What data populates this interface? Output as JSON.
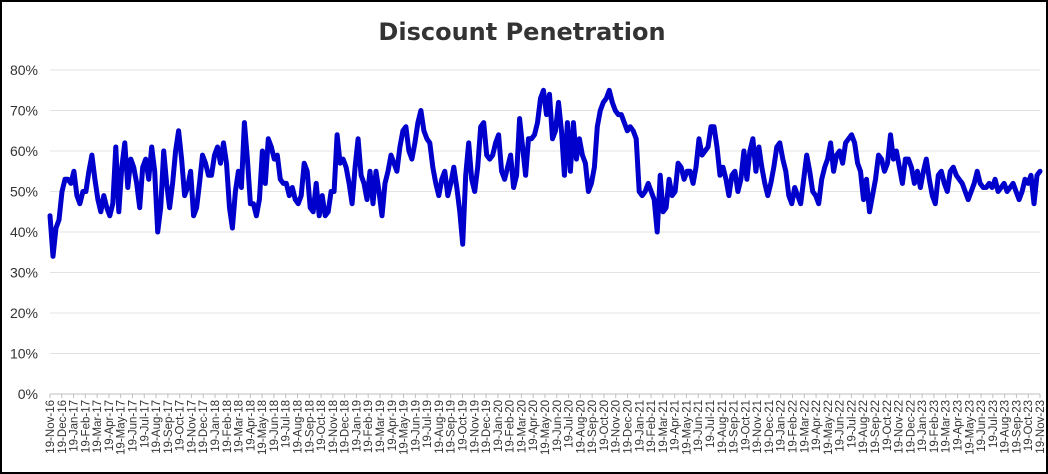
{
  "chart_data": {
    "type": "line",
    "title": "Discount Penetration",
    "xlabel": "",
    "ylabel": "",
    "ylim": [
      0,
      0.8
    ],
    "yticks": [
      "0%",
      "10%",
      "20%",
      "30%",
      "40%",
      "50%",
      "60%",
      "70%",
      "80%"
    ],
    "grid": true,
    "legend": "none",
    "line_color": "#0000CC",
    "categories": [
      "19-Nov-16",
      "19-Dec-16",
      "19-Jan-17",
      "19-Feb-17",
      "19-Mar-17",
      "19-Apr-17",
      "19-May-17",
      "19-Jun-17",
      "19-Jul-17",
      "19-Aug-17",
      "19-Sep-17",
      "19-Oct-17",
      "19-Nov-17",
      "19-Dec-17",
      "19-Jan-18",
      "19-Feb-18",
      "19-Mar-18",
      "19-Apr-18",
      "19-May-18",
      "19-Jun-18",
      "19-Jul-18",
      "19-Aug-18",
      "19-Sep-18",
      "19-Oct-18",
      "19-Nov-18",
      "19-Dec-18",
      "19-Jan-19",
      "19-Feb-19",
      "19-Mar-19",
      "19-Apr-19",
      "19-May-19",
      "19-Jun-19",
      "19-Jul-19",
      "19-Aug-19",
      "19-Sep-19",
      "19-Oct-19",
      "19-Nov-19",
      "19-Dec-19",
      "19-Jan-20",
      "19-Feb-20",
      "19-Mar-20",
      "19-Apr-20",
      "19-May-20",
      "19-Jun-20",
      "19-Jul-20",
      "19-Aug-20",
      "19-Sep-20",
      "19-Oct-20",
      "19-Nov-20",
      "19-Dec-20",
      "19-Jan-21",
      "19-Feb-21",
      "19-Mar-21",
      "19-Apr-21",
      "19-May-21",
      "19-Jun-21",
      "19-Jul-21",
      "19-Aug-21",
      "19-Sep-21",
      "19-Oct-21",
      "19-Nov-21",
      "19-Dec-21",
      "19-Jan-22",
      "19-Feb-22",
      "19-Mar-22",
      "19-Apr-22",
      "19-May-22",
      "19-Jun-22",
      "19-Jul-22",
      "19-Aug-22",
      "19-Sep-22",
      "19-Oct-22",
      "19-Nov-22",
      "19-Dec-22",
      "19-Jan-23",
      "19-Feb-23",
      "19-Mar-23",
      "19-Apr-23",
      "19-May-23",
      "19-Jun-23",
      "19-Jul-23",
      "19-Aug-23",
      "19-Sep-23",
      "19-Oct-23",
      "19-Nov-23"
    ],
    "series": [
      {
        "name": "Discount Penetration",
        "values": [
          0.44,
          0.34,
          0.41,
          0.43,
          0.5,
          0.53,
          0.53,
          0.52,
          0.55,
          0.49,
          0.47,
          0.5,
          0.5,
          0.55,
          0.59,
          0.53,
          0.48,
          0.45,
          0.49,
          0.46,
          0.44,
          0.47,
          0.61,
          0.45,
          0.56,
          0.62,
          0.51,
          0.58,
          0.56,
          0.52,
          0.46,
          0.56,
          0.58,
          0.53,
          0.61,
          0.55,
          0.4,
          0.46,
          0.6,
          0.52,
          0.46,
          0.52,
          0.6,
          0.65,
          0.58,
          0.49,
          0.51,
          0.55,
          0.44,
          0.46,
          0.52,
          0.59,
          0.57,
          0.54,
          0.54,
          0.59,
          0.61,
          0.57,
          0.62,
          0.57,
          0.46,
          0.41,
          0.5,
          0.55,
          0.51,
          0.67,
          0.58,
          0.47,
          0.47,
          0.44,
          0.48,
          0.6,
          0.52,
          0.63,
          0.61,
          0.58,
          0.59,
          0.53,
          0.52,
          0.52,
          0.49,
          0.51,
          0.48,
          0.47,
          0.49,
          0.57,
          0.55,
          0.46,
          0.45,
          0.52,
          0.44,
          0.49,
          0.44,
          0.45,
          0.5,
          0.5,
          0.64,
          0.57,
          0.58,
          0.56,
          0.52,
          0.47,
          0.56,
          0.63,
          0.54,
          0.52,
          0.48,
          0.55,
          0.47,
          0.55,
          0.5,
          0.44,
          0.52,
          0.55,
          0.59,
          0.57,
          0.55,
          0.61,
          0.65,
          0.66,
          0.6,
          0.58,
          0.62,
          0.67,
          0.7,
          0.65,
          0.63,
          0.62,
          0.56,
          0.52,
          0.49,
          0.53,
          0.55,
          0.49,
          0.52,
          0.56,
          0.51,
          0.45,
          0.37,
          0.54,
          0.62,
          0.53,
          0.5,
          0.56,
          0.66,
          0.67,
          0.59,
          0.58,
          0.59,
          0.62,
          0.64,
          0.55,
          0.53,
          0.56,
          0.59,
          0.51,
          0.54,
          0.68,
          0.61,
          0.54,
          0.63,
          0.63,
          0.64,
          0.67,
          0.73,
          0.75,
          0.69,
          0.74,
          0.63,
          0.65,
          0.72,
          0.65,
          0.54,
          0.67,
          0.55,
          0.67,
          0.58,
          0.63,
          0.59,
          0.57,
          0.5,
          0.52,
          0.56,
          0.66,
          0.7,
          0.72,
          0.73,
          0.75,
          0.72,
          0.7,
          0.69,
          0.69,
          0.67,
          0.65,
          0.66,
          0.65,
          0.63,
          0.5,
          0.49,
          0.5,
          0.52,
          0.5,
          0.48,
          0.4,
          0.54,
          0.45,
          0.46,
          0.53,
          0.49,
          0.5,
          0.57,
          0.56,
          0.53,
          0.55,
          0.55,
          0.52,
          0.56,
          0.63,
          0.59,
          0.6,
          0.61,
          0.66,
          0.66,
          0.61,
          0.54,
          0.56,
          0.53,
          0.49,
          0.54,
          0.55,
          0.5,
          0.53,
          0.6,
          0.53,
          0.6,
          0.63,
          0.55,
          0.61,
          0.56,
          0.52,
          0.49,
          0.52,
          0.56,
          0.61,
          0.62,
          0.58,
          0.55,
          0.49,
          0.47,
          0.51,
          0.49,
          0.47,
          0.53,
          0.59,
          0.55,
          0.5,
          0.49,
          0.47,
          0.53,
          0.56,
          0.58,
          0.62,
          0.55,
          0.59,
          0.6,
          0.57,
          0.62,
          0.63,
          0.64,
          0.62,
          0.57,
          0.55,
          0.48,
          0.53,
          0.45,
          0.49,
          0.53,
          0.59,
          0.58,
          0.55,
          0.57,
          0.64,
          0.58,
          0.6,
          0.56,
          0.52,
          0.58,
          0.58,
          0.56,
          0.52,
          0.55,
          0.51,
          0.55,
          0.58,
          0.53,
          0.49,
          0.47,
          0.54,
          0.55,
          0.52,
          0.5,
          0.55,
          0.56,
          0.54,
          0.53,
          0.52,
          0.5,
          0.48,
          0.5,
          0.52,
          0.55,
          0.52,
          0.51,
          0.51,
          0.52,
          0.51,
          0.53,
          0.5,
          0.51,
          0.52,
          0.5,
          0.51,
          0.52,
          0.5,
          0.48,
          0.5,
          0.53,
          0.52,
          0.54,
          0.47,
          0.54,
          0.55
        ]
      }
    ]
  }
}
